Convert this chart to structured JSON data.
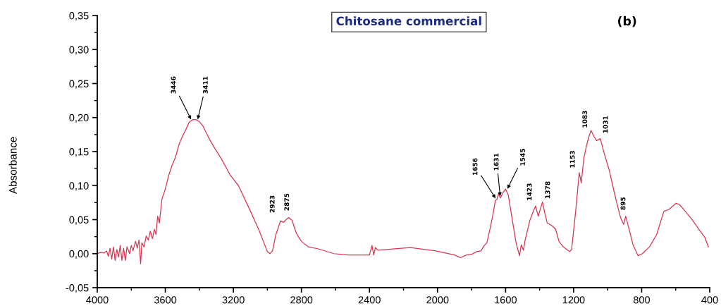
{
  "chart_data": {
    "type": "line",
    "title": "Chitosane commercial",
    "ylabel": "Absorbance",
    "annotations": [
      "(b)",
      {
        "text": "3446",
        "x": 3446,
        "y": 0.196
      },
      {
        "text": "3411",
        "x": 3411,
        "y": 0.196
      },
      {
        "text": "2923",
        "x": 2923,
        "y": 0.048
      },
      {
        "text": "2875",
        "x": 2875,
        "y": 0.053
      },
      {
        "text": "1656",
        "x": 1656,
        "y": 0.08
      },
      {
        "text": "1631",
        "x": 1631,
        "y": 0.083
      },
      {
        "text": "1545",
        "x": 1592,
        "y": 0.094
      },
      {
        "text": "1423",
        "x": 1424,
        "y": 0.07
      },
      {
        "text": "1378",
        "x": 1383,
        "y": 0.076
      },
      {
        "text": "1153",
        "x": 1167,
        "y": 0.119
      },
      {
        "text": "1083",
        "x": 1098,
        "y": 0.181
      },
      {
        "text": "1031",
        "x": 1043,
        "y": 0.169
      },
      {
        "text": "895",
        "x": 894,
        "y": 0.055
      }
    ],
    "x": [
      4000,
      3980,
      3960,
      3945,
      3935,
      3925,
      3915,
      3905,
      3895,
      3885,
      3875,
      3865,
      3855,
      3845,
      3835,
      3825,
      3810,
      3800,
      3790,
      3775,
      3765,
      3755,
      3745,
      3738,
      3725,
      3712,
      3700,
      3688,
      3676,
      3664,
      3655,
      3645,
      3635,
      3620,
      3600,
      3580,
      3560,
      3540,
      3520,
      3500,
      3480,
      3460,
      3440,
      3420,
      3400,
      3380,
      3360,
      3340,
      3310,
      3272,
      3220,
      3170,
      3110,
      3050,
      3000,
      2985,
      2970,
      2950,
      2923,
      2905,
      2890,
      2875,
      2855,
      2830,
      2800,
      2760,
      2700,
      2610,
      2520,
      2400,
      2385,
      2375,
      2365,
      2350,
      2300,
      2160,
      2010,
      1900,
      1865,
      1830,
      1800,
      1770,
      1745,
      1725,
      1710,
      1697,
      1676,
      1660,
      1650,
      1642,
      1630,
      1615,
      1600,
      1584,
      1560,
      1540,
      1530,
      1518,
      1508,
      1495,
      1485,
      1457,
      1440,
      1424,
      1408,
      1383,
      1370,
      1355,
      1326,
      1306,
      1286,
      1261,
      1224,
      1212,
      1188,
      1167,
      1155,
      1140,
      1125,
      1110,
      1098,
      1080,
      1064,
      1043,
      1021,
      990,
      970,
      948,
      923,
      906,
      894,
      872,
      851,
      821,
      796,
      754,
      712,
      670,
      640,
      598,
      577,
      543,
      501,
      459,
      429,
      408
    ],
    "series": [
      {
        "color": "#d8344f",
        "values": [
          0.0,
          0.002,
          0.001,
          0.004,
          -0.004,
          0.008,
          -0.008,
          0.01,
          -0.01,
          0.006,
          -0.005,
          0.012,
          -0.01,
          0.008,
          -0.01,
          0.01,
          0.0,
          0.012,
          0.004,
          0.018,
          0.008,
          0.02,
          -0.015,
          0.016,
          0.01,
          0.026,
          0.02,
          0.033,
          0.022,
          0.036,
          0.028,
          0.055,
          0.045,
          0.08,
          0.095,
          0.115,
          0.13,
          0.142,
          0.16,
          0.172,
          0.182,
          0.193,
          0.197,
          0.197,
          0.194,
          0.188,
          0.178,
          0.168,
          0.155,
          0.14,
          0.116,
          0.1,
          0.068,
          0.035,
          0.003,
          0.0,
          0.004,
          0.028,
          0.048,
          0.046,
          0.05,
          0.053,
          0.049,
          0.03,
          0.018,
          0.01,
          0.007,
          0.0,
          -0.002,
          -0.002,
          0.012,
          -0.002,
          0.009,
          0.005,
          0.006,
          0.009,
          0.004,
          -0.002,
          -0.006,
          -0.002,
          -0.001,
          0.003,
          0.004,
          0.012,
          0.016,
          0.03,
          0.055,
          0.078,
          0.08,
          0.088,
          0.082,
          0.09,
          0.095,
          0.086,
          0.049,
          0.018,
          0.008,
          -0.003,
          0.013,
          0.005,
          0.02,
          0.049,
          0.06,
          0.07,
          0.055,
          0.076,
          0.06,
          0.045,
          0.041,
          0.036,
          0.018,
          0.01,
          0.003,
          0.006,
          0.062,
          0.119,
          0.104,
          0.14,
          0.158,
          0.172,
          0.181,
          0.172,
          0.166,
          0.169,
          0.148,
          0.122,
          0.1,
          0.076,
          0.052,
          0.043,
          0.055,
          0.034,
          0.013,
          -0.003,
          0.0,
          0.01,
          0.028,
          0.062,
          0.065,
          0.074,
          0.072,
          0.062,
          0.049,
          0.034,
          0.024,
          0.01
        ]
      }
    ],
    "xlim": [
      4000,
      400
    ],
    "xticks": [
      4000,
      3600,
      3200,
      2800,
      2400,
      2000,
      1600,
      1200,
      800,
      400
    ],
    "ylim": [
      -0.05,
      0.35
    ],
    "yticks": [
      {
        "value": -0.05,
        "label": "-0,05"
      },
      {
        "value": 0.0,
        "label": "0,00"
      },
      {
        "value": 0.05,
        "label": "0,05"
      },
      {
        "value": 0.1,
        "label": "0,10"
      },
      {
        "value": 0.15,
        "label": "0,15"
      },
      {
        "value": 0.2,
        "label": "0,20"
      },
      {
        "value": 0.25,
        "label": "0,25"
      },
      {
        "value": 0.3,
        "label": "0,30"
      },
      {
        "value": 0.35,
        "label": "0,35"
      }
    ],
    "line_style": "solid"
  }
}
